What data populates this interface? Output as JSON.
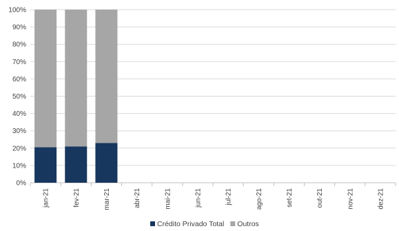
{
  "chart_data": {
    "type": "bar",
    "stacked": true,
    "percent_stacked": true,
    "categories": [
      "jan-21",
      "fev-21",
      "mar-21",
      "abr-21",
      "mai-21",
      "jun-21",
      "jul-21",
      "ago-21",
      "set-21",
      "out-21",
      "nov-21",
      "dez-21"
    ],
    "series": [
      {
        "name": "Crédito Privado Total",
        "color": "#17375E",
        "values": [
          20.5,
          21,
          23,
          null,
          null,
          null,
          null,
          null,
          null,
          null,
          null,
          null
        ]
      },
      {
        "name": "Outros",
        "color": "#A6A6A6",
        "values": [
          79.5,
          79,
          77,
          null,
          null,
          null,
          null,
          null,
          null,
          null,
          null,
          null
        ]
      }
    ],
    "y_ticks": [
      "0%",
      "10%",
      "20%",
      "30%",
      "40%",
      "50%",
      "60%",
      "70%",
      "80%",
      "90%",
      "100%"
    ],
    "ylim": [
      0,
      100
    ],
    "grid": true,
    "legend_position": "bottom"
  }
}
